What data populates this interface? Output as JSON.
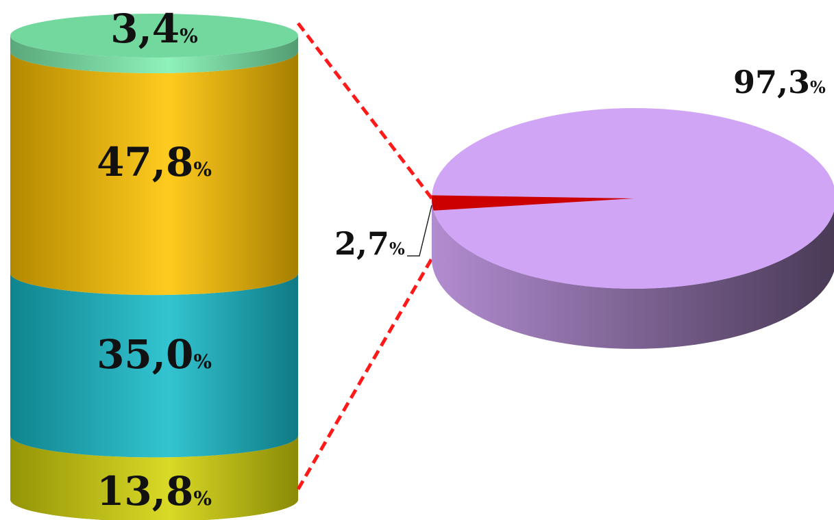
{
  "chart_data": [
    {
      "type": "stacked-cylinder",
      "title": "",
      "series": [
        {
          "value": 13.8,
          "label": "13,8",
          "color": "#d4d40a"
        },
        {
          "value": 35.0,
          "label": "35,0",
          "color": "#17bccb"
        },
        {
          "value": 47.8,
          "label": "47,8",
          "color": "#ffc400"
        },
        {
          "value": 3.4,
          "label": "3,4",
          "color": "#80f0b0"
        }
      ],
      "unit": "%",
      "stack_order": "bottom-to-top"
    },
    {
      "type": "pie",
      "title": "",
      "slices": [
        {
          "value": 97.3,
          "label": "97,3",
          "color": "#d1a5f5"
        },
        {
          "value": 2.7,
          "label": "2,7",
          "color": "#cc0000"
        }
      ],
      "unit": "%",
      "connector_color": "#ff1a1a",
      "connector_style": "dashed"
    }
  ]
}
